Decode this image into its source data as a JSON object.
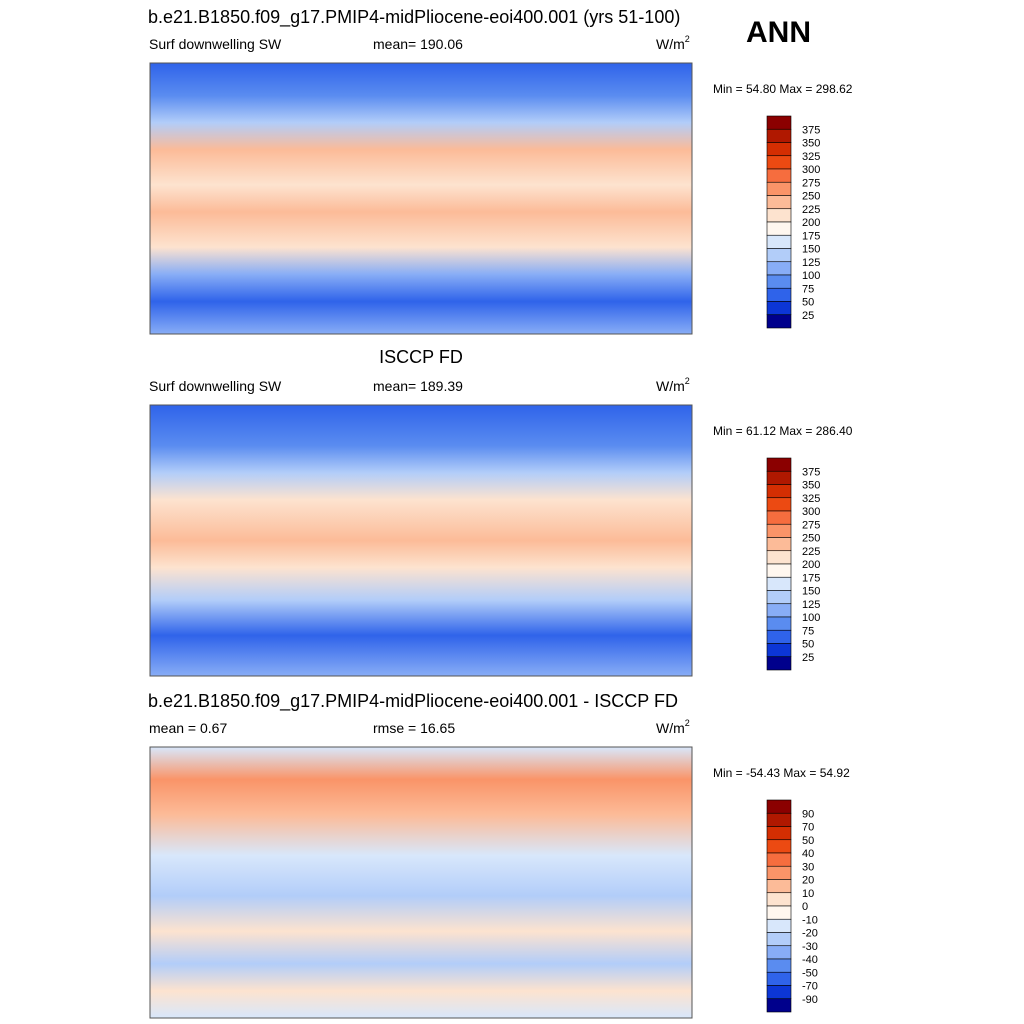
{
  "label": "ANN",
  "panels": [
    {
      "title": "b.e21.B1850.f09_g17.PMIP4-midPliocene-eoi400.001 (yrs 51-100)",
      "left": "Surf downwelling SW",
      "center": "mean= 190.06",
      "units": "W/m",
      "units_exp": "2",
      "minmax": "Min =  54.80 Max = 298.62",
      "colorbar": {
        "labels": [
          375,
          350,
          325,
          300,
          275,
          250,
          225,
          200,
          175,
          150,
          125,
          100,
          75,
          50,
          25
        ],
        "colors": [
          "#8b0000",
          "#b01800",
          "#d42e02",
          "#ec4a12",
          "#f66d3e",
          "#fa9468",
          "#fcbb98",
          "#fde3cf",
          "#fff7ef",
          "#d8e7fb",
          "#b2cdf9",
          "#88adf6",
          "#5a8cf0",
          "#2f63ea",
          "#0c36d6",
          "#00008c"
        ]
      }
    },
    {
      "title": "ISCCP FD",
      "left": "Surf downwelling SW",
      "center": "mean= 189.39",
      "units": "W/m",
      "units_exp": "2",
      "minmax": "Min =  61.12 Max = 286.40",
      "colorbar": {
        "labels": [
          375,
          350,
          325,
          300,
          275,
          250,
          225,
          200,
          175,
          150,
          125,
          100,
          75,
          50,
          25
        ],
        "colors": [
          "#8b0000",
          "#b01800",
          "#d42e02",
          "#ec4a12",
          "#f66d3e",
          "#fa9468",
          "#fcbb98",
          "#fde3cf",
          "#fff7ef",
          "#d8e7fb",
          "#b2cdf9",
          "#88adf6",
          "#5a8cf0",
          "#2f63ea",
          "#0c36d6",
          "#00008c"
        ]
      }
    },
    {
      "title": "b.e21.B1850.f09_g17.PMIP4-midPliocene-eoi400.001 - ISCCP FD",
      "left": "mean =   0.67",
      "center": "rmse =  16.65",
      "units": "W/m",
      "units_exp": "2",
      "minmax": "Min = -54.43 Max =  54.92",
      "colorbar": {
        "labels": [
          90,
          70,
          50,
          40,
          30,
          20,
          10,
          0,
          -10,
          -20,
          -30,
          -40,
          -50,
          -70,
          -90
        ],
        "colors": [
          "#8b0000",
          "#b01800",
          "#d42e02",
          "#ec4a12",
          "#f66d3e",
          "#fa9468",
          "#fcbb98",
          "#fde3cf",
          "#fff7ef",
          "#d8e7fb",
          "#b2cdf9",
          "#88adf6",
          "#5a8cf0",
          "#2f63ea",
          "#0c36d6",
          "#00008c"
        ]
      }
    }
  ]
}
